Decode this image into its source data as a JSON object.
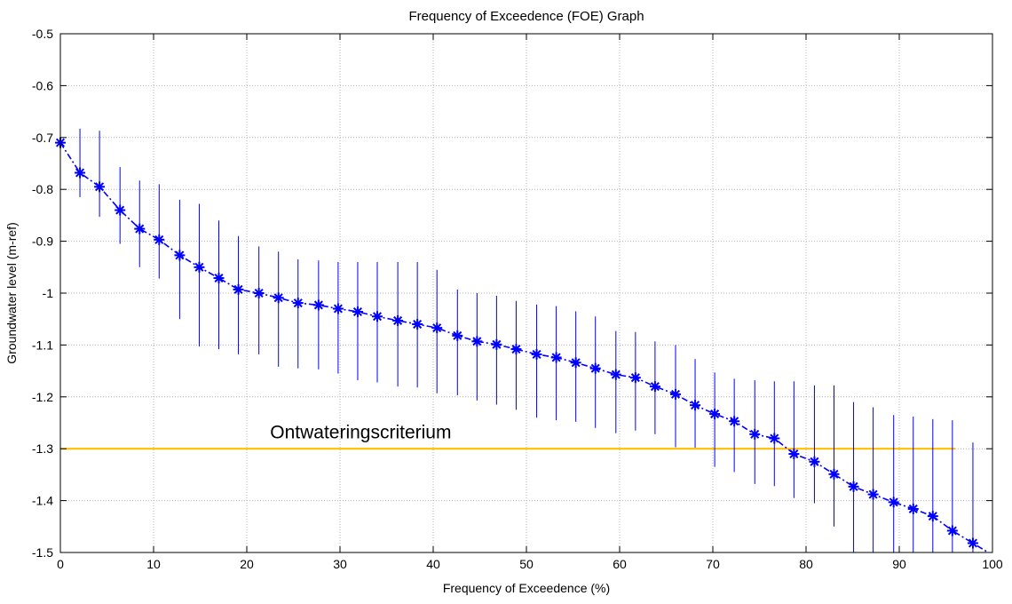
{
  "chart_data": {
    "type": "line",
    "title": "Frequency of Exceedence (FOE) Graph",
    "xlabel": "Frequency of Exceedence (%)",
    "ylabel": "Groundwater level (m-ref)",
    "xlim": [
      0,
      100
    ],
    "ylim": [
      -1.5,
      -0.5
    ],
    "xticks": [
      0,
      10,
      20,
      30,
      40,
      50,
      60,
      70,
      80,
      90,
      100
    ],
    "yticks": [
      -0.5,
      -0.6,
      -0.7,
      -0.8,
      -0.9,
      -1,
      -1.1,
      -1.2,
      -1.3,
      -1.4,
      -1.5
    ],
    "grid": true,
    "series": [
      {
        "color": "#0000ff",
        "marker": "asterisk",
        "linestyle": "dash-dot",
        "x": [
          0,
          2.1,
          4.2,
          6.4,
          8.5,
          10.6,
          12.8,
          14.9,
          17.0,
          19.1,
          21.3,
          23.4,
          25.5,
          27.7,
          29.8,
          31.9,
          34.0,
          36.2,
          38.3,
          40.4,
          42.6,
          44.7,
          46.8,
          48.9,
          51.1,
          53.2,
          55.3,
          57.4,
          59.6,
          61.7,
          63.8,
          66.0,
          68.1,
          70.2,
          72.3,
          74.5,
          76.6,
          78.7,
          80.9,
          83.0,
          85.1,
          87.2,
          89.4,
          91.5,
          93.6,
          95.7,
          97.9
        ],
        "y": [
          -0.71,
          -0.768,
          -0.795,
          -0.84,
          -0.876,
          -0.897,
          -0.927,
          -0.95,
          -0.971,
          -0.993,
          -1.0,
          -1.009,
          -1.019,
          -1.023,
          -1.03,
          -1.036,
          -1.045,
          -1.053,
          -1.06,
          -1.067,
          -1.082,
          -1.093,
          -1.099,
          -1.108,
          -1.118,
          -1.124,
          -1.134,
          -1.145,
          -1.157,
          -1.163,
          -1.18,
          -1.195,
          -1.216,
          -1.233,
          -1.247,
          -1.272,
          -1.28,
          -1.31,
          -1.325,
          -1.349,
          -1.373,
          -1.388,
          -1.403,
          -1.416,
          -1.43,
          -1.458,
          -1.482
        ],
        "err_low": [
          -0.71,
          -0.815,
          -0.853,
          -0.905,
          -0.95,
          -0.972,
          -1.05,
          -1.103,
          -1.108,
          -1.118,
          -1.118,
          -1.142,
          -1.145,
          -1.147,
          -1.155,
          -1.168,
          -1.172,
          -1.18,
          -1.182,
          -1.193,
          -1.197,
          -1.207,
          -1.215,
          -1.225,
          -1.24,
          -1.245,
          -1.248,
          -1.26,
          -1.27,
          -1.265,
          -1.272,
          -1.297,
          -1.298,
          -1.335,
          -1.345,
          -1.368,
          -1.372,
          -1.395,
          -1.405,
          -1.45,
          -1.5,
          -1.5,
          -1.5,
          -1.5,
          -1.5,
          -1.5,
          -1.5
        ],
        "err_high": [
          -0.71,
          -0.683,
          -0.687,
          -0.757,
          -0.783,
          -0.79,
          -0.82,
          -0.828,
          -0.86,
          -0.89,
          -0.91,
          -0.92,
          -0.935,
          -0.937,
          -0.94,
          -0.94,
          -0.94,
          -0.94,
          -0.94,
          -0.955,
          -0.993,
          -1.0,
          -1.005,
          -1.015,
          -1.022,
          -1.025,
          -1.035,
          -1.045,
          -1.073,
          -1.075,
          -1.093,
          -1.1,
          -1.127,
          -1.153,
          -1.165,
          -1.168,
          -1.17,
          -1.17,
          -1.178,
          -1.178,
          -1.21,
          -1.22,
          -1.235,
          -1.238,
          -1.243,
          -1.245,
          -1.288
        ]
      }
    ],
    "reference_line": {
      "y": -1.3,
      "x_start": 0,
      "x_end": 96,
      "color": "#ffc000",
      "label": "Ontwateringscriterium",
      "label_x": 22.5,
      "label_y": -1.27
    }
  }
}
